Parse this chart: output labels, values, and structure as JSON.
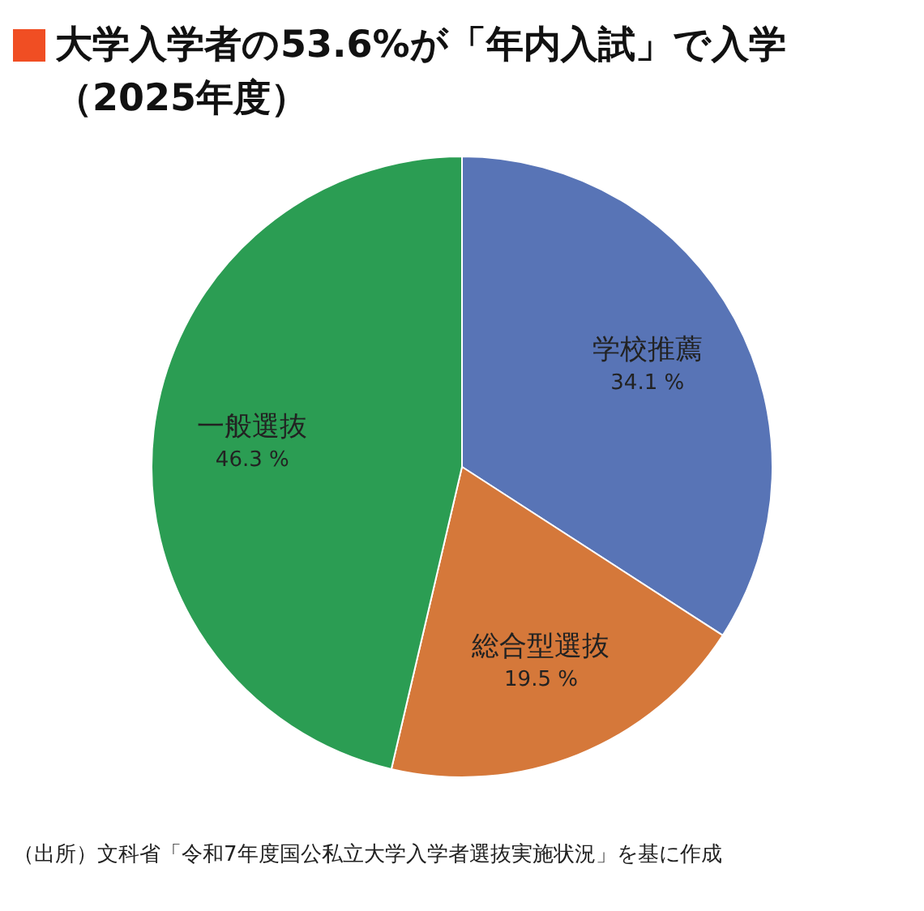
{
  "chart_data": {
    "type": "pie",
    "title": "大学入学者の53.6%が「年内入試」で入学（2025年度）",
    "categories": [
      "学校推薦",
      "総合型選抜",
      "一般選抜"
    ],
    "values": [
      34.1,
      19.5,
      46.3
    ],
    "value_labels": [
      "34.1 %",
      "19.5 %",
      "46.3 %"
    ],
    "colors": [
      "#5874b6",
      "#d5783a",
      "#2b9d53"
    ],
    "legend": false,
    "annotations": [
      "（出所）文科省「令和7年度国公私立大学入学者選抜実施状況」を基に作成"
    ]
  }
}
